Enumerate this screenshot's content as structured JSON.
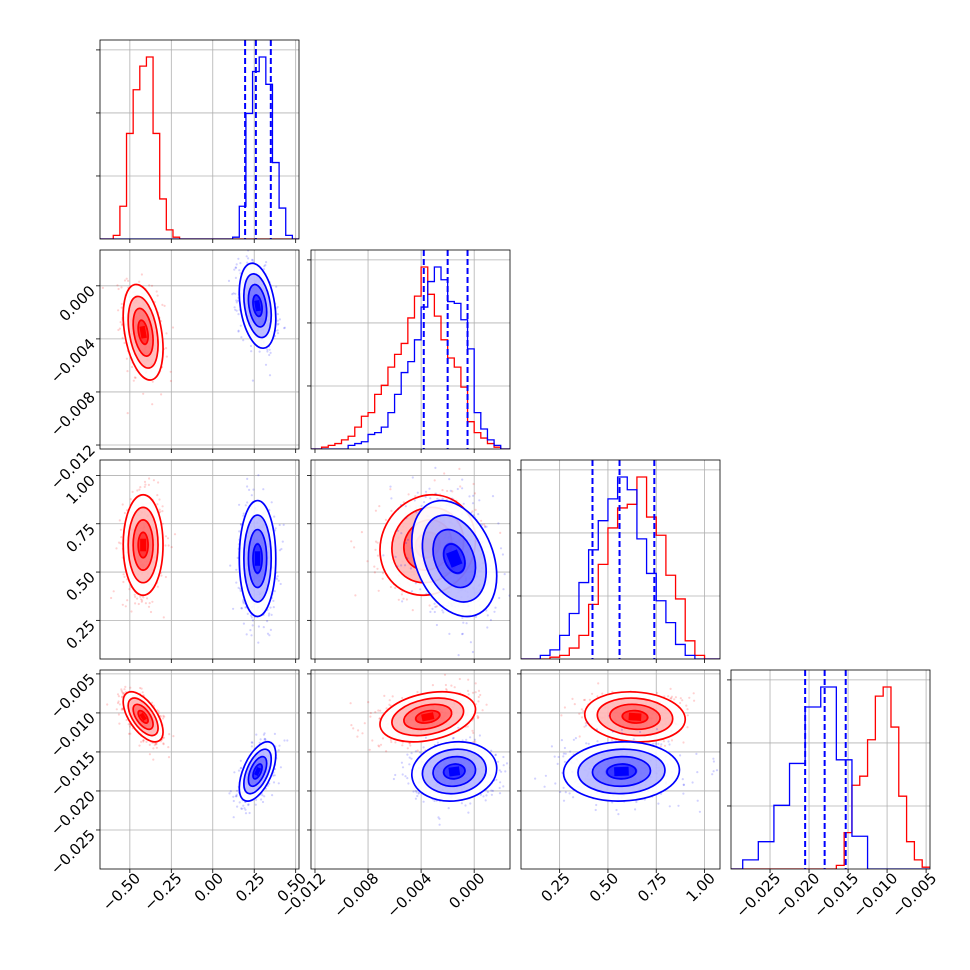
{
  "chart_data": {
    "type": "corner",
    "parameters": [
      {
        "range": [
          -0.68,
          0.52
        ],
        "ticks": [
          -0.5,
          -0.25,
          0.0,
          0.25,
          0.5
        ],
        "tick_labels": [
          "−0.50",
          "−0.25",
          "0.00",
          "0.25",
          "0.50"
        ]
      },
      {
        "range": [
          -0.0123,
          0.0027
        ],
        "ticks": [
          -0.012,
          -0.008,
          -0.004,
          0.0
        ],
        "tick_labels": [
          "−0.012",
          "−0.008",
          "−0.004",
          "0.000"
        ]
      },
      {
        "range": [
          0.05,
          1.08
        ],
        "ticks": [
          0.25,
          0.5,
          0.75,
          1.0
        ],
        "tick_labels": [
          "0.25",
          "0.50",
          "0.75",
          "1.00"
        ]
      },
      {
        "range": [
          -0.03,
          -0.0045
        ],
        "ticks": [
          -0.025,
          -0.02,
          -0.015,
          -0.01,
          -0.005
        ],
        "tick_labels": [
          "−0.025",
          "−0.020",
          "−0.015",
          "−0.010",
          "−0.005"
        ]
      }
    ],
    "series": [
      {
        "color": "#ff0000",
        "means": [
          -0.42,
          -0.0035,
          0.64,
          -0.0105
        ],
        "sds": [
          0.06,
          0.0018,
          0.13,
          0.0016
        ],
        "corr": [
          [
            0,
            1,
            -0.35
          ],
          [
            0,
            3,
            -0.6
          ],
          [
            1,
            2,
            0.1
          ],
          [
            1,
            3,
            0.3
          ],
          [
            2,
            3,
            -0.1
          ]
        ],
        "histograms": [
          {
            "edges": [
              -0.68,
              -0.6,
              -0.56,
              -0.52,
              -0.48,
              -0.44,
              -0.4,
              -0.36,
              -0.32,
              -0.28,
              -0.24,
              -0.2,
              0.52
            ],
            "counts": [
              0,
              0.02,
              0.18,
              0.58,
              0.82,
              0.95,
              1.0,
              0.58,
              0.22,
              0.05,
              0.01,
              0
            ]
          },
          {
            "edges": [
              -0.0123,
              -0.0115,
              -0.011,
              -0.0105,
              -0.01,
              -0.0095,
              -0.009,
              -0.0085,
              -0.008,
              -0.0075,
              -0.007,
              -0.0065,
              -0.006,
              -0.0055,
              -0.005,
              -0.0045,
              -0.004,
              -0.0035,
              -0.003,
              -0.0025,
              -0.002,
              -0.0015,
              -0.001,
              -0.0005,
              0.0,
              0.0005,
              0.001,
              0.0015,
              0.002,
              0.0027
            ],
            "counts": [
              0,
              0.01,
              0.02,
              0.03,
              0.05,
              0.07,
              0.12,
              0.18,
              0.2,
              0.3,
              0.35,
              0.45,
              0.52,
              0.58,
              0.72,
              0.84,
              1.0,
              0.85,
              0.73,
              0.6,
              0.5,
              0.45,
              0.34,
              0.15,
              0.09,
              0.06,
              0.03,
              0.01,
              0
            ]
          },
          {
            "edges": [
              0.05,
              0.2,
              0.25,
              0.3,
              0.35,
              0.4,
              0.45,
              0.5,
              0.55,
              0.6,
              0.65,
              0.7,
              0.75,
              0.8,
              0.85,
              0.9,
              0.95,
              1.0,
              1.08
            ],
            "counts": [
              0,
              0.01,
              0.02,
              0.06,
              0.13,
              0.3,
              0.52,
              0.72,
              0.83,
              0.85,
              1.0,
              0.78,
              0.68,
              0.46,
              0.33,
              0.1,
              0.02,
              0.0
            ]
          },
          {
            "edges": [
              -0.03,
              -0.0165,
              -0.0155,
              -0.0145,
              -0.0135,
              -0.0125,
              -0.0115,
              -0.0105,
              -0.0095,
              -0.0085,
              -0.0075,
              -0.0065,
              -0.0055,
              -0.0045
            ],
            "counts": [
              0,
              0.02,
              0.2,
              0.46,
              0.51,
              0.71,
              0.95,
              1.0,
              0.78,
              0.4,
              0.15,
              0.05,
              0.01
            ]
          }
        ],
        "quantiles": [
          [],
          [],
          [],
          []
        ]
      },
      {
        "color": "#0000ff",
        "means": [
          0.27,
          -0.0015,
          0.57,
          -0.0175
        ],
        "sds": [
          0.055,
          0.0016,
          0.15,
          0.0019
        ],
        "corr": [
          [
            0,
            1,
            -0.3
          ],
          [
            0,
            3,
            0.55
          ],
          [
            1,
            2,
            -0.3
          ],
          [
            1,
            3,
            0.1
          ],
          [
            2,
            3,
            0.05
          ]
        ],
        "histograms": [
          {
            "edges": [
              -0.68,
              0.12,
              0.16,
              0.2,
              0.24,
              0.28,
              0.32,
              0.36,
              0.4,
              0.44,
              0.48,
              0.52
            ],
            "counts": [
              0,
              0.01,
              0.18,
              0.69,
              0.92,
              1.0,
              0.85,
              0.42,
              0.17,
              0.02,
              0
            ]
          },
          {
            "edges": [
              -0.0123,
              -0.0095,
              -0.009,
              -0.0085,
              -0.008,
              -0.0075,
              -0.007,
              -0.0065,
              -0.006,
              -0.0055,
              -0.005,
              -0.0045,
              -0.004,
              -0.0035,
              -0.003,
              -0.0025,
              -0.002,
              -0.0015,
              -0.001,
              -0.0005,
              0.0,
              0.0005,
              0.001,
              0.0015,
              0.002,
              0.0027
            ],
            "counts": [
              0,
              0.02,
              0.03,
              0.04,
              0.08,
              0.09,
              0.12,
              0.2,
              0.3,
              0.42,
              0.48,
              0.6,
              0.78,
              0.92,
              1.0,
              0.93,
              0.81,
              0.8,
              0.71,
              0.55,
              0.2,
              0.11,
              0.05,
              0.02,
              0
            ]
          },
          {
            "edges": [
              0.05,
              0.15,
              0.2,
              0.25,
              0.3,
              0.35,
              0.4,
              0.45,
              0.5,
              0.55,
              0.6,
              0.65,
              0.7,
              0.75,
              0.8,
              0.85,
              0.9,
              0.95,
              1.08
            ],
            "counts": [
              0,
              0.02,
              0.05,
              0.13,
              0.25,
              0.42,
              0.6,
              0.76,
              0.88,
              1.0,
              0.93,
              0.66,
              0.47,
              0.32,
              0.2,
              0.08,
              0.02,
              0
            ]
          },
          {
            "edges": [
              -0.03,
              -0.0285,
              -0.0265,
              -0.0245,
              -0.0225,
              -0.0205,
              -0.0185,
              -0.0165,
              -0.0145,
              -0.0125,
              -0.0045
            ],
            "counts": [
              0,
              0.05,
              0.15,
              0.35,
              0.58,
              0.89,
              1.0,
              0.6,
              0.18,
              0
            ]
          }
        ],
        "quantiles": [
          [
            0.195,
            0.26,
            0.35
          ],
          [
            -0.0038,
            -0.002,
            -0.0005
          ],
          [
            0.42,
            0.56,
            0.74
          ],
          [
            -0.0205,
            -0.018,
            -0.0153
          ]
        ]
      }
    ]
  }
}
